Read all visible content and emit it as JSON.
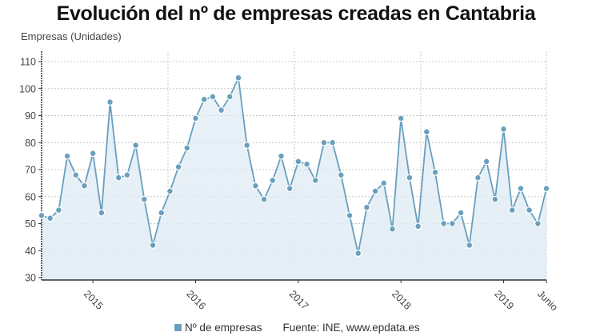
{
  "title": "Evolución del nº de empresas creadas en Cantabria",
  "legend": {
    "series_label": "Nº de empresas",
    "source": "Fuente: INE, www.epdata.es"
  },
  "colors": {
    "line": "#6a9fbd",
    "point": "#6a9fbd",
    "fill_top": "#d9e8f2",
    "fill_bottom": "#eef4f9",
    "grid": "#c8c8c8",
    "axis": "#333333"
  },
  "chart_data": {
    "type": "area",
    "title": "Evolución del nº de empresas creadas en Cantabria",
    "xlabel": "",
    "ylabel": "Empresas (Unidades)",
    "ylim": [
      30,
      110
    ],
    "yticks": [
      30,
      40,
      50,
      60,
      70,
      80,
      90,
      100,
      110
    ],
    "xticks": [
      {
        "label": "2015",
        "index": 6
      },
      {
        "label": "2016",
        "index": 18
      },
      {
        "label": "2017",
        "index": 30
      },
      {
        "label": "2018",
        "index": 42
      },
      {
        "label": "2019",
        "index": 54
      },
      {
        "label": "Junio",
        "index": 59
      }
    ],
    "grid": true,
    "legend_position": "bottom",
    "x": [
      "2014-07",
      "2014-08",
      "2014-09",
      "2014-10",
      "2014-11",
      "2014-12",
      "2015-01",
      "2015-02",
      "2015-03",
      "2015-04",
      "2015-05",
      "2015-06",
      "2015-07",
      "2015-08",
      "2015-09",
      "2015-10",
      "2015-11",
      "2015-12",
      "2016-01",
      "2016-02",
      "2016-03",
      "2016-04",
      "2016-05",
      "2016-06",
      "2016-07",
      "2016-08",
      "2016-09",
      "2016-10",
      "2016-11",
      "2016-12",
      "2017-01",
      "2017-02",
      "2017-03",
      "2017-04",
      "2017-05",
      "2017-06",
      "2017-07",
      "2017-08",
      "2017-09",
      "2017-10",
      "2017-11",
      "2017-12",
      "2018-01",
      "2018-02",
      "2018-03",
      "2018-04",
      "2018-05",
      "2018-06",
      "2018-07",
      "2018-08",
      "2018-09",
      "2018-10",
      "2018-11",
      "2018-12",
      "2019-01",
      "2019-02",
      "2019-03",
      "2019-04",
      "2019-05",
      "2019-06"
    ],
    "series": [
      {
        "name": "Nº de empresas",
        "values": [
          53,
          52,
          55,
          75,
          68,
          64,
          76,
          54,
          95,
          67,
          68,
          79,
          59,
          42,
          54,
          62,
          71,
          78,
          89,
          96,
          97,
          92,
          97,
          104,
          79,
          64,
          59,
          66,
          75,
          63,
          73,
          72,
          66,
          80,
          80,
          68,
          53,
          39,
          56,
          62,
          65,
          48,
          89,
          67,
          49,
          84,
          69,
          50,
          50,
          54,
          42,
          67,
          73,
          59,
          85,
          55,
          63,
          55,
          50,
          63
        ]
      }
    ]
  }
}
